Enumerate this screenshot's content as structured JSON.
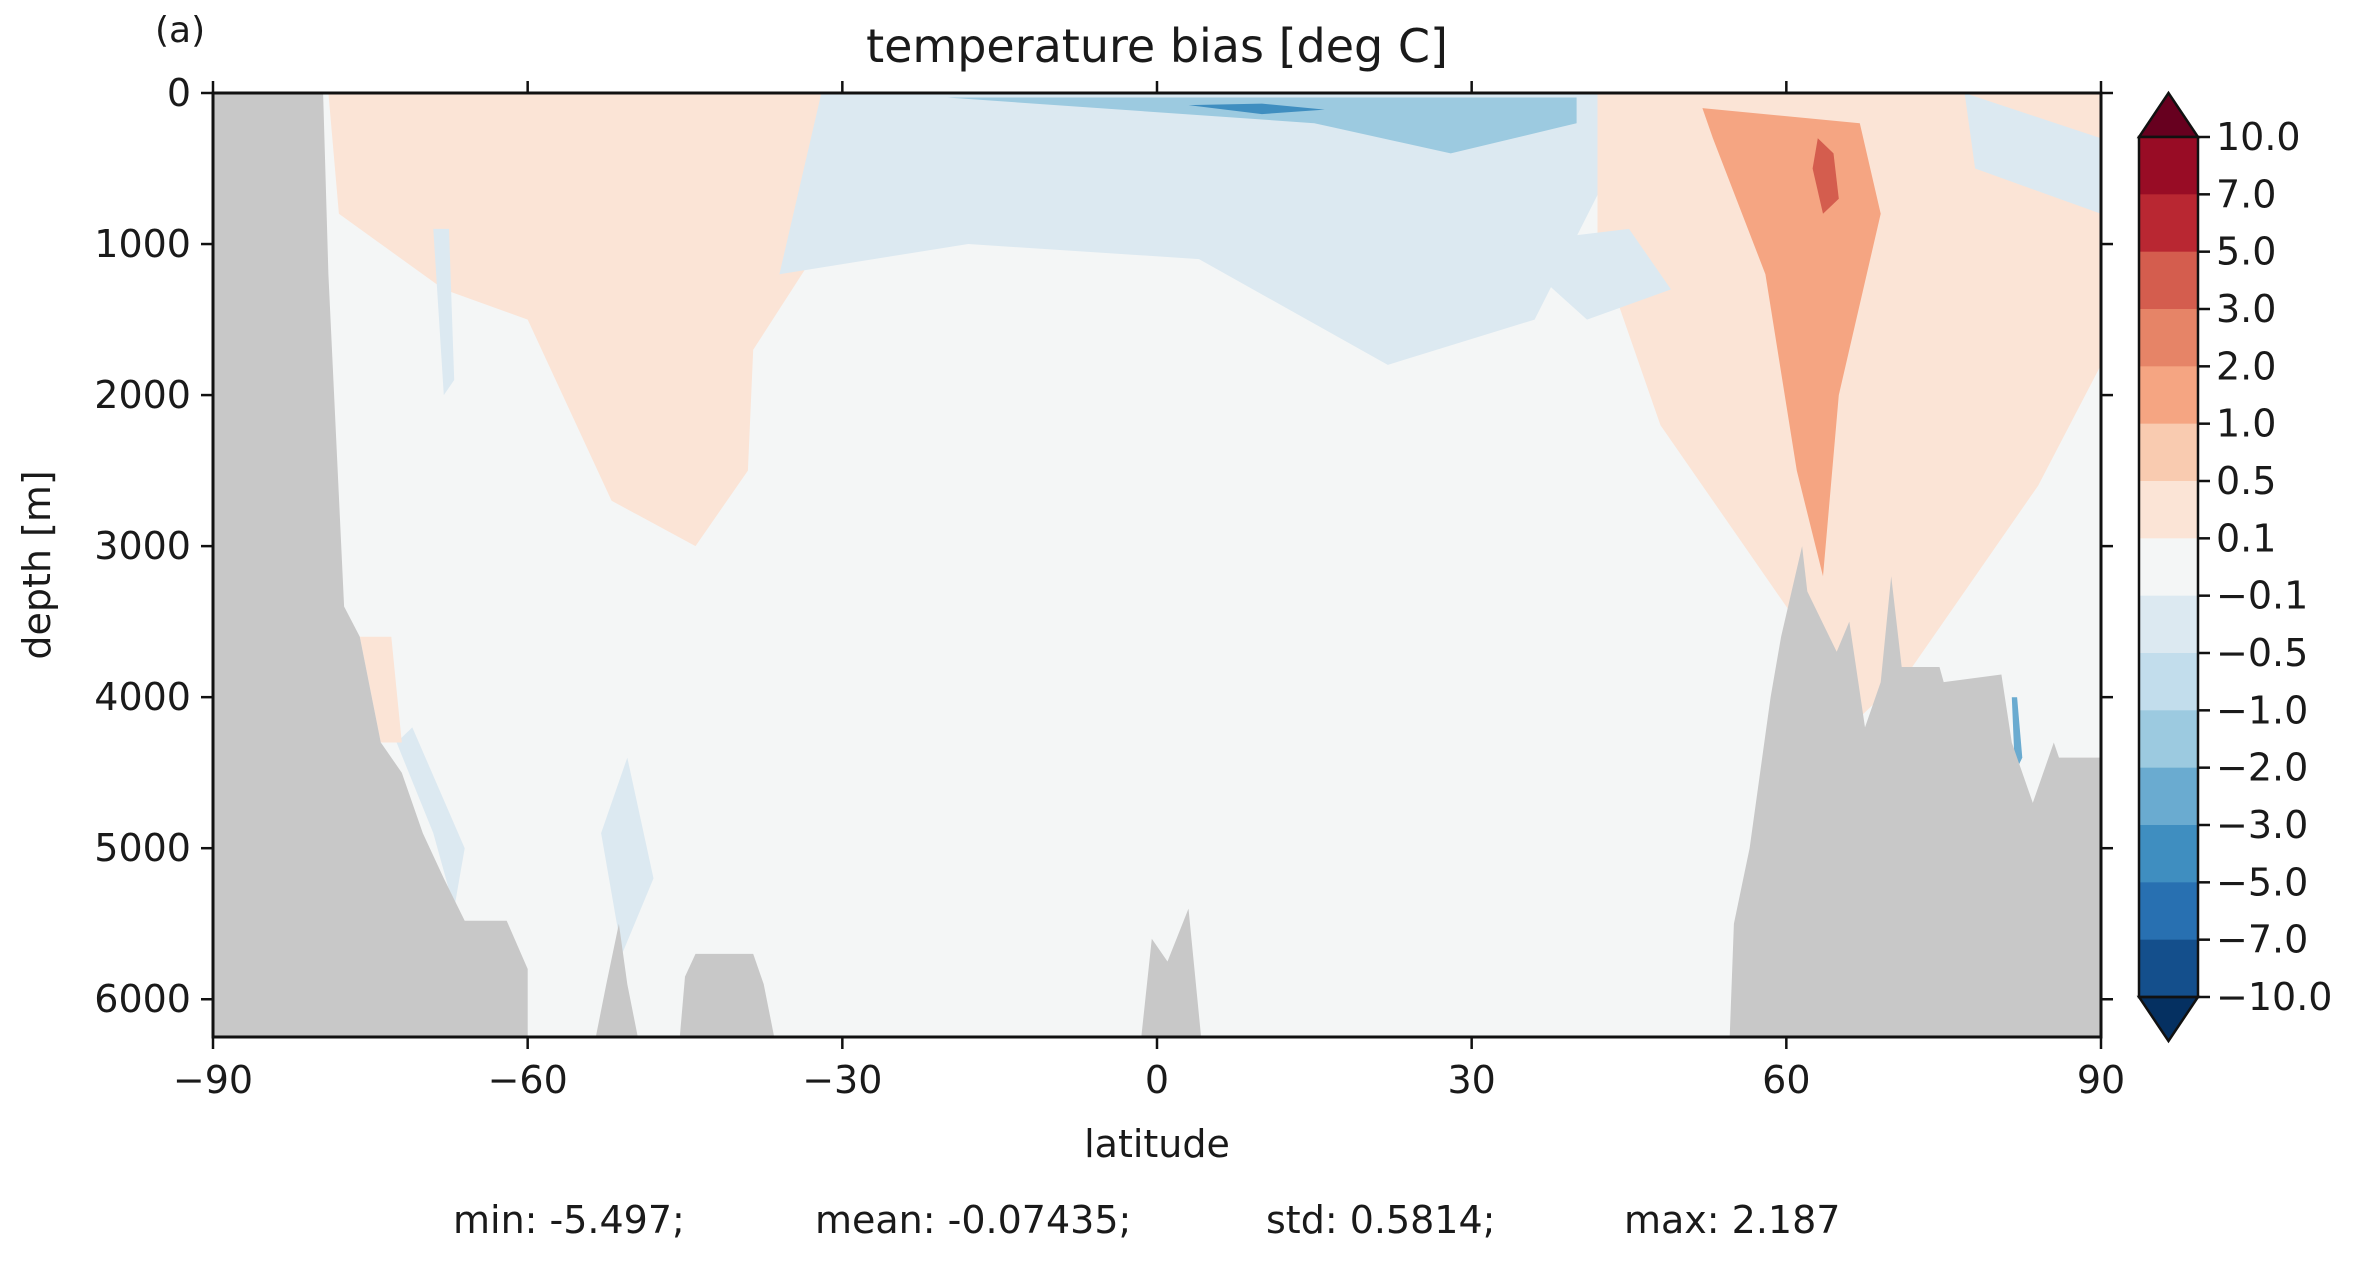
{
  "panel_label": "(a)",
  "chart_data": {
    "type": "heatmap",
    "title": "temperature bias [deg C]",
    "xlabel": "latitude",
    "ylabel": "depth [m]",
    "xlim": [
      -90,
      90
    ],
    "ylim": [
      6250,
      0
    ],
    "y_inverted": true,
    "xticks": [
      -90,
      -60,
      -30,
      0,
      30,
      60,
      90
    ],
    "xtick_labels": [
      "−90",
      "−60",
      "−30",
      "0",
      "30",
      "60",
      "90"
    ],
    "yticks": [
      0,
      1000,
      2000,
      3000,
      4000,
      5000,
      6000
    ],
    "ytick_labels": [
      "0",
      "1000",
      "2000",
      "3000",
      "4000",
      "5000",
      "6000"
    ],
    "colormap": "RdBu_r",
    "extend": "both",
    "land_color": "#c8c8c8",
    "background_color": "#f4f6f6",
    "colorbar": {
      "levels": [
        10.0,
        7.0,
        5.0,
        3.0,
        2.0,
        1.0,
        0.5,
        0.1,
        -0.1,
        -0.5,
        -1.0,
        -2.0,
        -3.0,
        -5.0,
        -7.0,
        -10.0
      ],
      "tick_labels": [
        "10.0",
        "7.0",
        "5.0",
        "3.0",
        "2.0",
        "1.0",
        "0.5",
        "0.1",
        "−0.1",
        "−0.5",
        "−1.0",
        "−2.0",
        "−3.0",
        "−5.0",
        "−7.0",
        "−10.0"
      ],
      "colors": [
        "#67001f",
        "#980c25",
        "#b92732",
        "#d45d4e",
        "#e68467",
        "#f5a582",
        "#f9cbb0",
        "#fbe4d6",
        "#f4f6f6",
        "#dce9f1",
        "#c2ddec",
        "#9ccae0",
        "#6aabd0",
        "#3f8ec0",
        "#2870b1",
        "#144f8c",
        "#053061"
      ]
    },
    "south_land_boundary": [
      [
        0,
        -79.5
      ],
      [
        1200,
        -79
      ],
      [
        3400,
        -77.5
      ],
      [
        3600,
        -76
      ],
      [
        4300,
        -74
      ],
      [
        4500,
        -72
      ],
      [
        4900,
        -70
      ],
      [
        5200,
        -68
      ],
      [
        5480,
        -66
      ],
      [
        5480,
        -62
      ],
      [
        5800,
        -60
      ],
      [
        6250,
        -60
      ]
    ],
    "north_land_boundary": [
      [
        6250,
        54.6
      ],
      [
        5500,
        55
      ],
      [
        5000,
        56.5
      ],
      [
        4500,
        57.5
      ],
      [
        4000,
        58.5
      ],
      [
        3600,
        59.5
      ],
      [
        3000,
        61.5
      ],
      [
        3300,
        62
      ],
      [
        3700,
        64.8
      ],
      [
        3500,
        66
      ],
      [
        4200,
        67.5
      ],
      [
        3900,
        69
      ],
      [
        3200,
        70
      ],
      [
        3800,
        71
      ],
      [
        3800,
        74.6
      ],
      [
        3900,
        75
      ],
      [
        3850,
        80.5
      ],
      [
        4300,
        81.5
      ],
      [
        4700,
        83.5
      ],
      [
        4300,
        85.5
      ],
      [
        4400,
        86
      ],
      [
        4400,
        90
      ]
    ],
    "bottom_ridges": [
      [
        [
          6250,
          -53.5
        ],
        [
          5900,
          -52.5
        ],
        [
          5500,
          -51.3
        ],
        [
          5900,
          -50.5
        ],
        [
          6250,
          -49.5
        ]
      ],
      [
        [
          6250,
          -45.5
        ],
        [
          5850,
          -45
        ],
        [
          5700,
          -44
        ],
        [
          5700,
          -38.5
        ],
        [
          5900,
          -37.5
        ],
        [
          6250,
          -36.5
        ]
      ],
      [
        [
          6250,
          -1.5
        ],
        [
          5600,
          -0.5
        ],
        [
          5750,
          1
        ],
        [
          5400,
          3
        ],
        [
          6250,
          4.2
        ]
      ]
    ],
    "bias_regions": [
      {
        "value": 1.5,
        "points": [
          [
            0,
            -79
          ],
          [
            0,
            -38
          ],
          [
            400,
            -38
          ],
          [
            600,
            -52
          ],
          [
            800,
            -68
          ],
          [
            500,
            -76
          ],
          [
            0,
            -79
          ]
        ]
      },
      {
        "value": 0.3,
        "points": [
          [
            0,
            -79
          ],
          [
            0,
            -30
          ],
          [
            1000,
            -32
          ],
          [
            1700,
            -38.5
          ],
          [
            2500,
            -39
          ],
          [
            3000,
            -44
          ],
          [
            2700,
            -52
          ],
          [
            1500,
            -60
          ],
          [
            1300,
            -68
          ],
          [
            800,
            -78
          ],
          [
            0,
            -79
          ]
        ]
      },
      {
        "value": -0.3,
        "points": [
          [
            0,
            -32
          ],
          [
            0,
            44
          ],
          [
            400,
            44
          ],
          [
            1500,
            36
          ],
          [
            1800,
            22
          ],
          [
            1100,
            4
          ],
          [
            1000,
            -18
          ],
          [
            1200,
            -36
          ],
          [
            0,
            -32
          ]
        ]
      },
      {
        "value": -1.5,
        "points": [
          [
            30,
            -20
          ],
          [
            200,
            15
          ],
          [
            400,
            28
          ],
          [
            200,
            40
          ],
          [
            30,
            40
          ],
          [
            30,
            -20
          ]
        ]
      },
      {
        "value": -4.0,
        "points": [
          [
            80,
            3
          ],
          [
            140,
            10
          ],
          [
            110,
            16
          ],
          [
            70,
            10
          ],
          [
            80,
            3
          ]
        ]
      },
      {
        "value": 0.3,
        "points": [
          [
            0,
            42
          ],
          [
            0,
            90
          ],
          [
            1800,
            90
          ],
          [
            2600,
            84
          ],
          [
            3800,
            72
          ],
          [
            4200,
            66
          ],
          [
            3800,
            64
          ],
          [
            3000,
            56
          ],
          [
            2200,
            48
          ],
          [
            1000,
            42
          ],
          [
            0,
            42
          ]
        ]
      },
      {
        "value": 1.5,
        "points": [
          [
            100,
            52
          ],
          [
            200,
            67
          ],
          [
            800,
            69
          ],
          [
            2000,
            65
          ],
          [
            3200,
            63.5
          ],
          [
            2500,
            61
          ],
          [
            1200,
            58
          ],
          [
            300,
            53
          ],
          [
            100,
            52
          ]
        ]
      },
      {
        "value": 3.0,
        "points": [
          [
            300,
            63
          ],
          [
            400,
            64.5
          ],
          [
            700,
            65
          ],
          [
            800,
            63.5
          ],
          [
            500,
            62.5
          ],
          [
            300,
            63
          ]
        ]
      },
      {
        "value": -0.3,
        "points": [
          [
            1000,
            33
          ],
          [
            1500,
            41
          ],
          [
            1300,
            49
          ],
          [
            900,
            45
          ],
          [
            1000,
            33
          ]
        ]
      },
      {
        "value": -0.3,
        "points": [
          [
            0,
            77
          ],
          [
            300,
            90
          ],
          [
            800,
            90
          ],
          [
            500,
            78
          ],
          [
            0,
            77
          ]
        ]
      },
      {
        "value": -0.3,
        "points": [
          [
            4300,
            -72.5
          ],
          [
            4900,
            -69
          ],
          [
            5400,
            -67
          ],
          [
            5000,
            -66
          ],
          [
            4200,
            -71
          ],
          [
            4300,
            -72.5
          ]
        ]
      },
      {
        "value": -0.3,
        "points": [
          [
            900,
            -69
          ],
          [
            2000,
            -68
          ],
          [
            1900,
            -67
          ],
          [
            900,
            -67.5
          ],
          [
            900,
            -69
          ]
        ]
      },
      {
        "value": -0.3,
        "points": [
          [
            4900,
            -53
          ],
          [
            5700,
            -51
          ],
          [
            5200,
            -48
          ],
          [
            4400,
            -50.5
          ],
          [
            4900,
            -53
          ]
        ]
      },
      {
        "value": 0.3,
        "points": [
          [
            3600,
            -76
          ],
          [
            4300,
            -74
          ],
          [
            4300,
            -72
          ],
          [
            3600,
            -73
          ],
          [
            3600,
            -76
          ]
        ]
      },
      {
        "value": -3.0,
        "points": [
          [
            4000,
            81.5
          ],
          [
            4500,
            81.8
          ],
          [
            4400,
            82.5
          ],
          [
            4000,
            82
          ],
          [
            4000,
            81.5
          ]
        ]
      }
    ],
    "stats": [
      {
        "label": "min: -5.497;"
      },
      {
        "label": "mean: -0.07435;"
      },
      {
        "label": "std: 0.5814;"
      },
      {
        "label": "max: 2.187"
      }
    ]
  }
}
